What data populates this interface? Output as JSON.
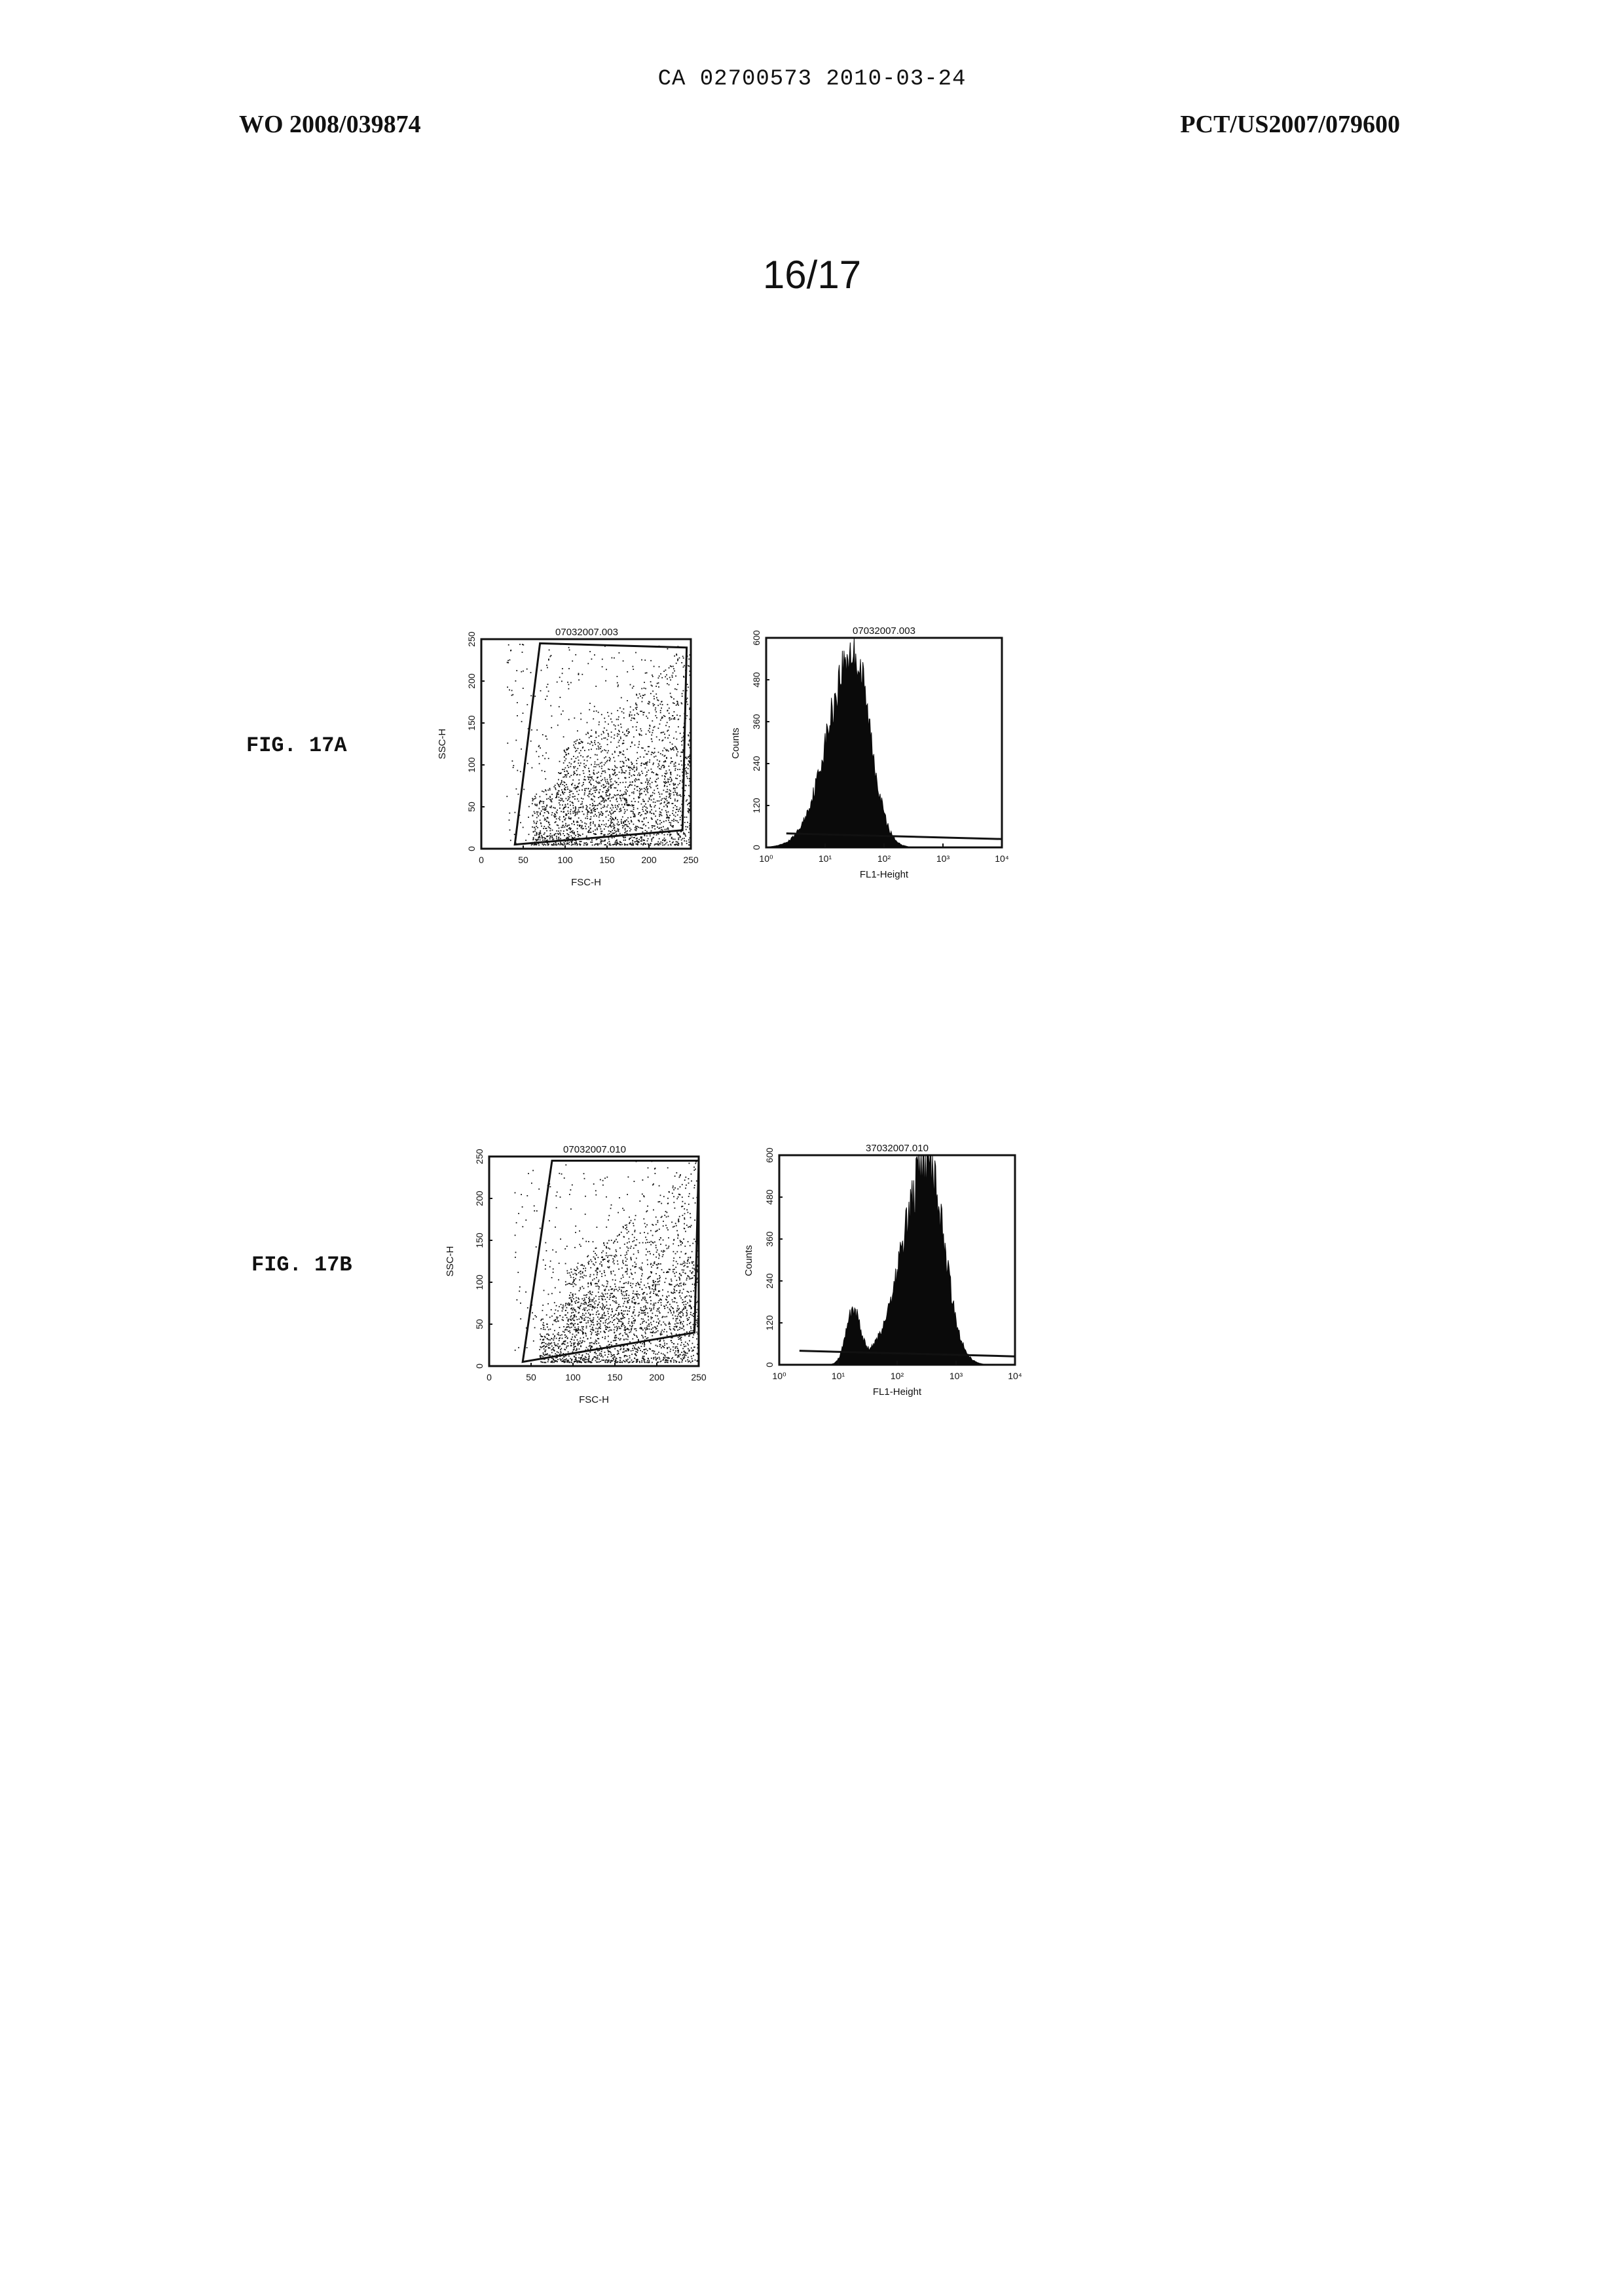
{
  "header": {
    "top": "CA 02700573 2010-03-24",
    "left": "WO 2008/039874",
    "right": "PCT/US2007/079600",
    "page_number": "16/17"
  },
  "figures": {
    "a": {
      "label": "FIG. 17A"
    },
    "b": {
      "label": "FIG. 17B"
    }
  },
  "chart_data": [
    {
      "type": "scatter",
      "figure": "FIG. 17A",
      "title": "07032007.003",
      "xlabel": "FSC-H",
      "ylabel": "SSC-H",
      "xlim": [
        0,
        250
      ],
      "ylim": [
        0,
        250
      ],
      "xticks": [
        "0",
        "50",
        "100",
        "150",
        "200",
        "250"
      ],
      "yticks": [
        "0",
        "50",
        "100",
        "150",
        "200",
        "250"
      ],
      "gate": [
        [
          70,
          245
        ],
        [
          245,
          240
        ],
        [
          240,
          22
        ],
        [
          40,
          5
        ]
      ]
    },
    {
      "type": "bar",
      "figure": "FIG. 17A",
      "title": "07032007.003",
      "xlabel": "FL1-Height",
      "ylabel": "Counts",
      "xscale": "log",
      "xlim": [
        1,
        10000
      ],
      "ylim": [
        0,
        600
      ],
      "xticks": [
        "10⁰",
        "10¹",
        "10²",
        "10³",
        "10⁴"
      ],
      "yticks": [
        "0",
        "120",
        "240",
        "360",
        "480",
        "600"
      ],
      "peak": {
        "x": 30,
        "y": 560
      },
      "marker_y": 40
    },
    {
      "type": "scatter",
      "figure": "FIG. 17B",
      "title": "07032007.010",
      "xlabel": "FSC-H",
      "ylabel": "SSC-H",
      "xlim": [
        0,
        250
      ],
      "ylim": [
        0,
        250
      ],
      "xticks": [
        "0",
        "50",
        "100",
        "150",
        "200",
        "250"
      ],
      "yticks": [
        "0",
        "50",
        "100",
        "150",
        "200",
        "250"
      ],
      "gate": [
        [
          75,
          245
        ],
        [
          250,
          245
        ],
        [
          245,
          40
        ],
        [
          40,
          5
        ]
      ]
    },
    {
      "type": "bar",
      "figure": "FIG. 17B",
      "title": "37032007.010",
      "xlabel": "FL1-Height",
      "ylabel": "Counts",
      "xscale": "log",
      "xlim": [
        1,
        10000
      ],
      "ylim": [
        0,
        600
      ],
      "xticks": [
        "10⁰",
        "10¹",
        "10²",
        "10³",
        "10⁴"
      ],
      "yticks": [
        "0",
        "120",
        "240",
        "360",
        "480",
        "600"
      ],
      "peak": {
        "x": 330,
        "y": 575
      },
      "shoulder": {
        "x": 18,
        "y": 150
      },
      "marker_y": 40
    }
  ]
}
